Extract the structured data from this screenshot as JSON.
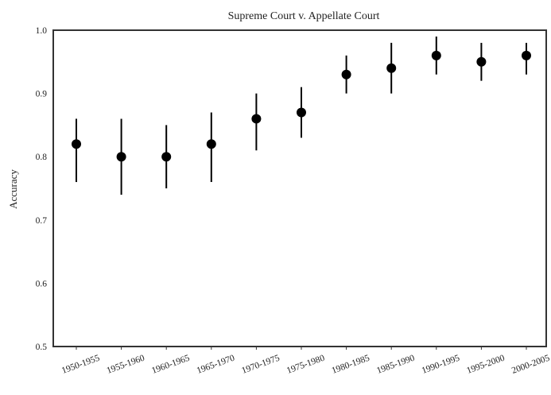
{
  "chart_data": {
    "type": "scatter",
    "title": "Supreme Court v. Appellate Court",
    "xlabel": "",
    "ylabel": "Accuracy",
    "ylim": [
      0.5,
      1.0
    ],
    "yticks": [
      "0.5",
      "0.6",
      "0.7",
      "0.8",
      "0.9",
      "1.0"
    ],
    "grid": false,
    "categories": [
      "1950-1955",
      "1955-1960",
      "1960-1965",
      "1965-1970",
      "1970-1975",
      "1975-1980",
      "1980-1985",
      "1985-1990",
      "1990-1995",
      "1995-2000",
      "2000-2005"
    ],
    "series": [
      {
        "values": [
          0.82,
          0.8,
          0.8,
          0.82,
          0.86,
          0.87,
          0.93,
          0.94,
          0.96,
          0.95,
          0.96
        ],
        "error_low": [
          0.76,
          0.74,
          0.75,
          0.76,
          0.81,
          0.83,
          0.9,
          0.9,
          0.93,
          0.92,
          0.93
        ],
        "error_high": [
          0.86,
          0.86,
          0.85,
          0.87,
          0.9,
          0.91,
          0.96,
          0.98,
          0.99,
          0.98,
          0.98
        ],
        "color": "#000000"
      }
    ]
  }
}
